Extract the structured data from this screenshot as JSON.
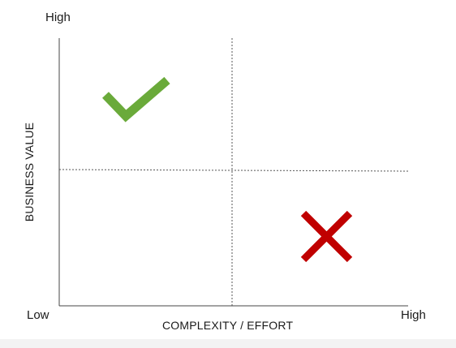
{
  "axes": {
    "y_title": "BUSINESS VALUE",
    "y_high_label": "High",
    "x_title": "COMPLEXITY / EFFORT",
    "x_low_label": "Low",
    "x_high_label": "High"
  },
  "quadrants": {
    "top_left_marker": "checkmark",
    "bottom_right_marker": "cross"
  },
  "colors": {
    "check": "#6aaa3a",
    "cross": "#c00000",
    "axis": "#444444",
    "divider": "#555555"
  }
}
